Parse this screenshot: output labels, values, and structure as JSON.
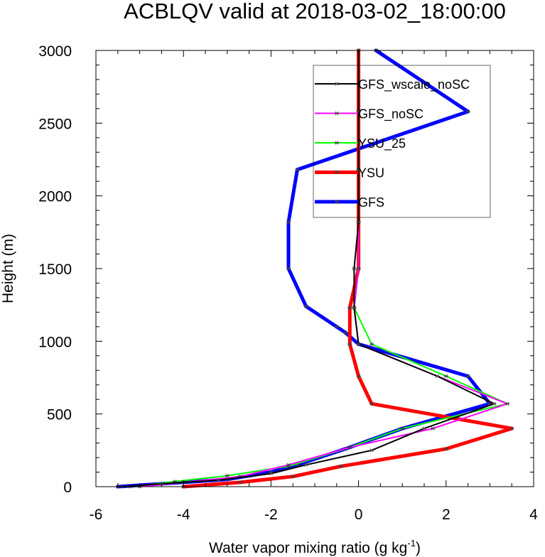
{
  "chart_data": {
    "type": "line",
    "title": "ACBLQV valid at 2018-03-02_18:00:00",
    "xlabel": "Water vapor mixing ratio (g kg",
    "xlabel_sup": "-1",
    "xlabel_end": ")",
    "ylabel": "Height (m)",
    "xlim": [
      -6,
      4
    ],
    "ylim": [
      0,
      3000
    ],
    "x_ticks": [
      -6,
      -4,
      -2,
      0,
      2,
      4
    ],
    "x_tick_labels": [
      "-6",
      "-4",
      "-2",
      "0",
      "2",
      "4"
    ],
    "y_ticks": [
      0,
      500,
      1000,
      1500,
      2000,
      2500,
      3000
    ],
    "y_tick_labels": [
      "0",
      "500",
      "1000",
      "1500",
      "2000",
      "2500",
      "3000"
    ],
    "grid": false,
    "legend_position": "top-right",
    "series": [
      {
        "name": "GFS",
        "color": "#0000ff",
        "width": 5,
        "points": [
          [
            -5.5,
            0
          ],
          [
            -4.5,
            20
          ],
          [
            -3.0,
            50
          ],
          [
            -2.0,
            100
          ],
          [
            -1.4,
            150
          ],
          [
            -0.3,
            260
          ],
          [
            1.0,
            400
          ],
          [
            3.0,
            570
          ],
          [
            2.5,
            760
          ],
          [
            0.0,
            980
          ],
          [
            -0.3,
            1060
          ],
          [
            -0.5,
            1100
          ],
          [
            -1.2,
            1240
          ],
          [
            -1.6,
            1500
          ],
          [
            -1.6,
            1820
          ],
          [
            -1.4,
            2180
          ],
          [
            2.5,
            2580
          ],
          [
            0.4,
            3000
          ]
        ]
      },
      {
        "name": "YSU",
        "color": "#ff0000",
        "width": 5,
        "points": [
          [
            -4.0,
            0
          ],
          [
            -2.7,
            30
          ],
          [
            -1.5,
            70
          ],
          [
            -0.4,
            140
          ],
          [
            2.0,
            260
          ],
          [
            3.5,
            400
          ],
          [
            0.3,
            570
          ],
          [
            0.0,
            760
          ],
          [
            -0.2,
            980
          ],
          [
            -0.2,
            1230
          ],
          [
            0.0,
            1500
          ],
          [
            0.0,
            1820
          ],
          [
            0.0,
            2180
          ],
          [
            0.0,
            2580
          ],
          [
            0.0,
            3000
          ]
        ]
      },
      {
        "name": "YSU_25",
        "color": "#00ff00",
        "width": 2,
        "points": [
          [
            -5.2,
            0
          ],
          [
            -4.2,
            35
          ],
          [
            -3.0,
            75
          ],
          [
            -1.6,
            140
          ],
          [
            -0.3,
            260
          ],
          [
            1.0,
            400
          ],
          [
            3.4,
            570
          ],
          [
            2.0,
            760
          ],
          [
            0.3,
            980
          ],
          [
            -0.1,
            1230
          ],
          [
            0.0,
            1500
          ],
          [
            0.0,
            1820
          ],
          [
            0.0,
            2180
          ],
          [
            0.0,
            2580
          ],
          [
            0.0,
            3000
          ]
        ]
      },
      {
        "name": "GFS_noSC",
        "color": "#ff00ff",
        "width": 2,
        "points": [
          [
            -5.0,
            0
          ],
          [
            -4.0,
            30
          ],
          [
            -2.7,
            70
          ],
          [
            -1.6,
            150
          ],
          [
            -0.2,
            270
          ],
          [
            1.7,
            400
          ],
          [
            3.4,
            570
          ],
          [
            1.8,
            760
          ],
          [
            0.0,
            980
          ],
          [
            -0.1,
            1230
          ],
          [
            0.0,
            1500
          ],
          [
            0.0,
            1820
          ],
          [
            0.0,
            2180
          ],
          [
            0.0,
            2580
          ],
          [
            0.0,
            3000
          ]
        ]
      },
      {
        "name": "GFS_wscale_noSC",
        "color": "#000000",
        "width": 2,
        "points": [
          [
            -5.4,
            0
          ],
          [
            -4.5,
            20
          ],
          [
            -3.2,
            45
          ],
          [
            -2.0,
            90
          ],
          [
            -1.2,
            150
          ],
          [
            0.3,
            250
          ],
          [
            1.5,
            400
          ],
          [
            3.1,
            570
          ],
          [
            1.8,
            760
          ],
          [
            0.0,
            980
          ],
          [
            -0.1,
            1230
          ],
          [
            -0.1,
            1500
          ],
          [
            0.0,
            1820
          ],
          [
            0.0,
            2180
          ],
          [
            0.0,
            2580
          ],
          [
            0.0,
            3000
          ]
        ]
      }
    ],
    "legend": [
      {
        "name": "GFS_wscale_noSC",
        "color": "#000000",
        "width": 2
      },
      {
        "name": "GFS_noSC",
        "color": "#ff00ff",
        "width": 2
      },
      {
        "name": "YSU_25",
        "color": "#00ff00",
        "width": 2
      },
      {
        "name": "YSU",
        "color": "#ff0000",
        "width": 5
      },
      {
        "name": "GFS",
        "color": "#0000ff",
        "width": 5
      }
    ]
  }
}
